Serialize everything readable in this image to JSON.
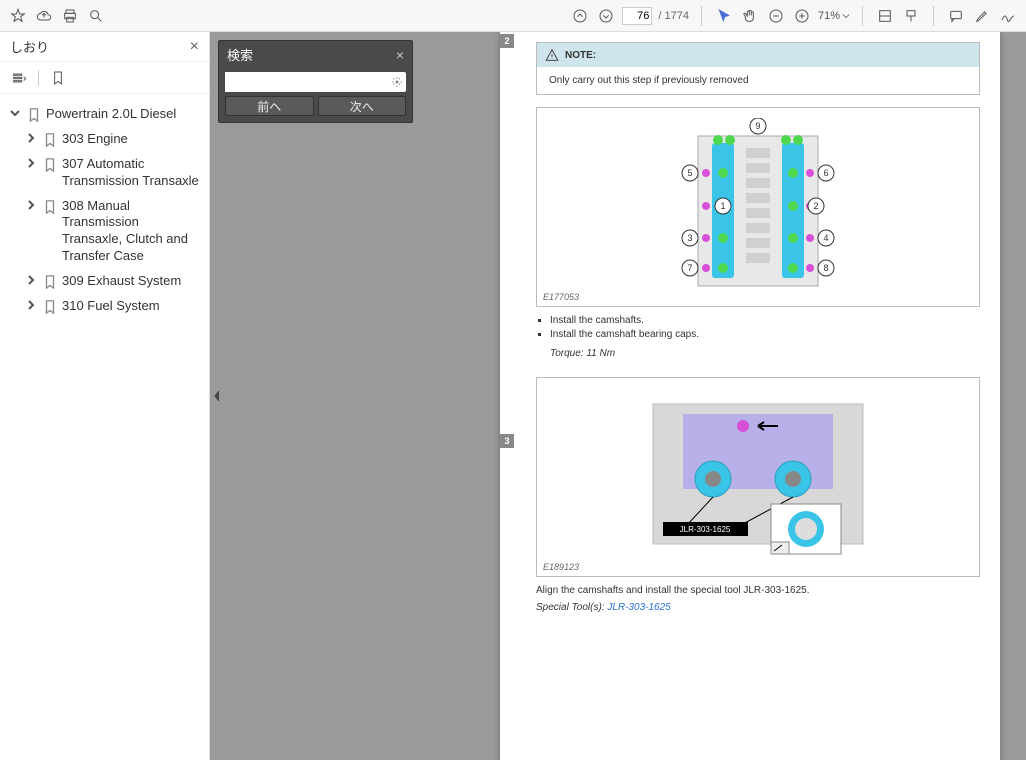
{
  "toolbar": {
    "page_current": "76",
    "page_total": "/ 1774",
    "zoom": "71%"
  },
  "sidebar": {
    "title": "しおり",
    "root": {
      "label": "Powertrain 2.0L Diesel"
    },
    "items": [
      {
        "label": "303 Engine"
      },
      {
        "label": "307 Automatic Transmission Transaxle"
      },
      {
        "label": "308 Manual Transmission Transaxle, Clutch and Transfer Case"
      },
      {
        "label": "309 Exhaust System"
      },
      {
        "label": "310 Fuel System"
      }
    ]
  },
  "search": {
    "title": "検索",
    "prev": "前へ",
    "next": "次へ"
  },
  "doc": {
    "step2_num": "2",
    "note_label": "NOTE:",
    "note_body": "Only carry out this step if previously removed",
    "fig1_id": "E177053",
    "callouts": [
      "1",
      "2",
      "3",
      "4",
      "5",
      "6",
      "7",
      "8",
      "9"
    ],
    "bullets": [
      "Install the camshafts.",
      "Install the camshaft bearing caps."
    ],
    "torque": "Torque: 11 Nm",
    "step3_num": "3",
    "fig2_tool": "JLR-303-1625",
    "fig2_id": "E189123",
    "align_text": "Align the camshafts and install the special tool JLR-303-1625.",
    "special_tool": "Special Tool(s): ",
    "special_tool_link": "JLR-303-1625",
    "colors": {
      "cam": "#3ac5e8",
      "bolt_green": "#4fd84f",
      "bolt_mag": "#d84fd8",
      "purple": "#b8b0e8",
      "gray": "#c0c0c0"
    }
  }
}
